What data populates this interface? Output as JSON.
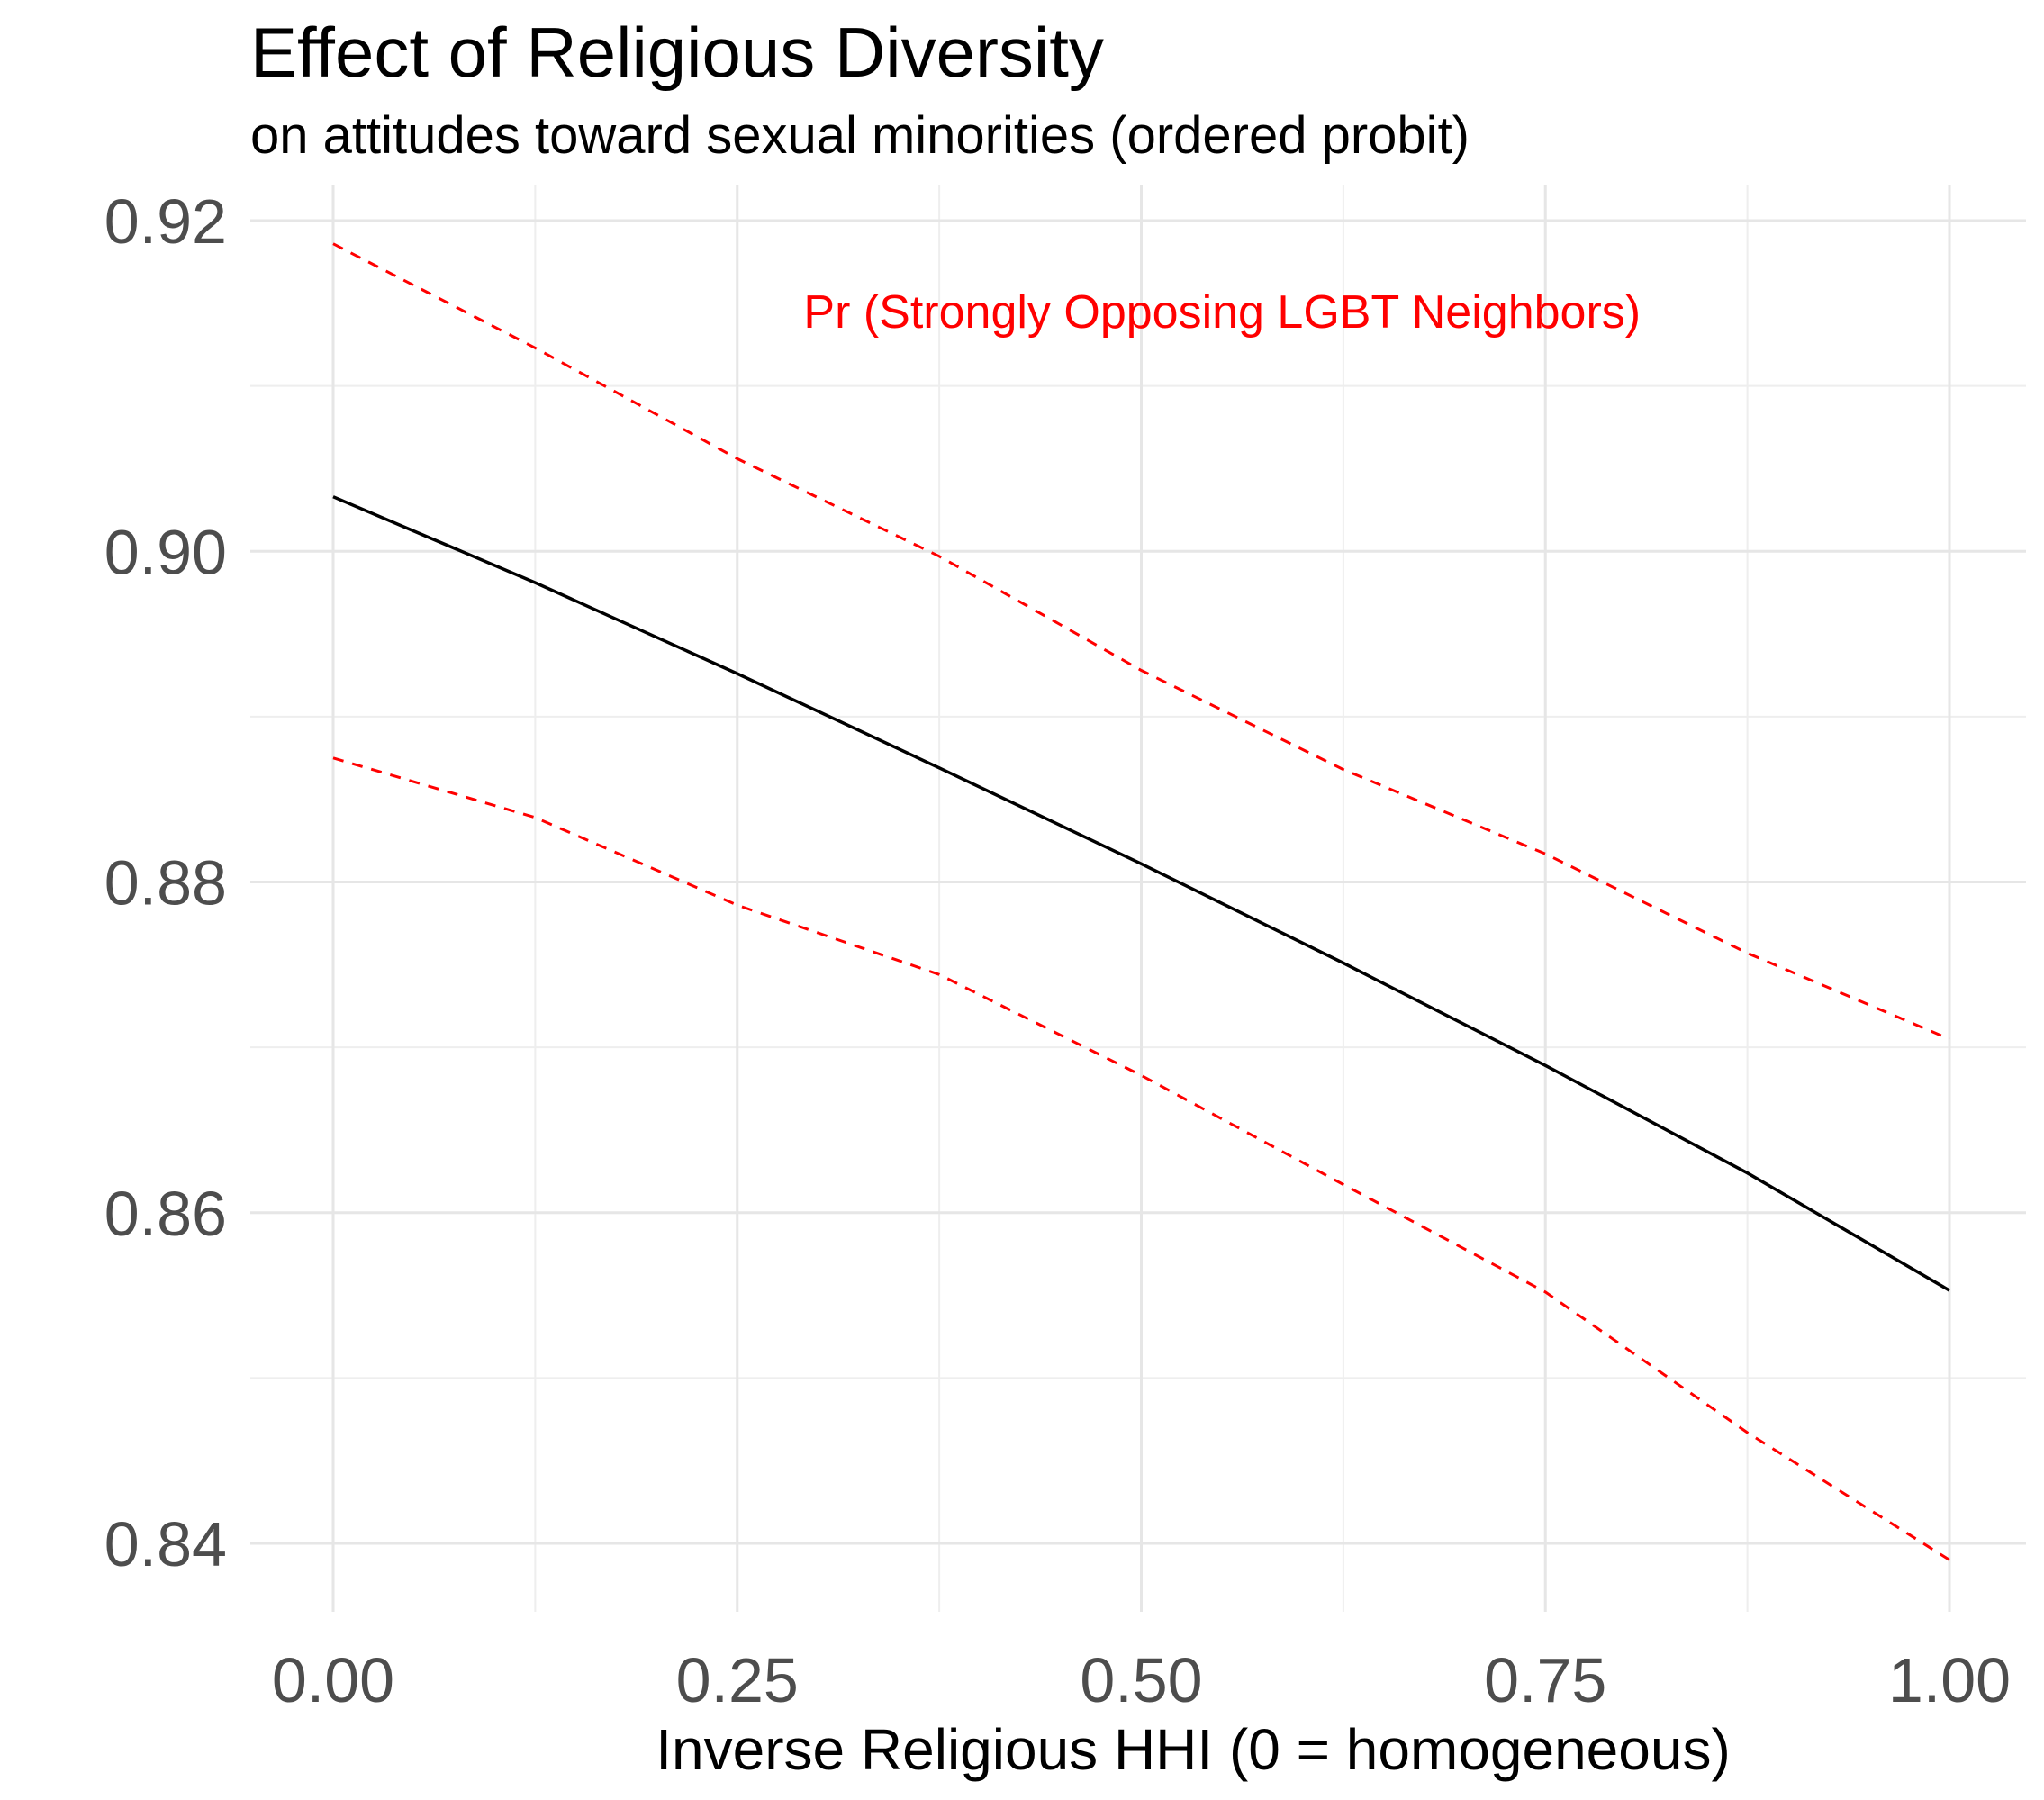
{
  "chart_data": {
    "type": "line",
    "title": "Effect of Religious Diversity",
    "subtitle": "on attitudes toward sexual minorities (ordered probit)",
    "xlabel": "Inverse Religious HHI (0 = homogeneous)",
    "ylabel": "",
    "xlim": [
      0,
      1
    ],
    "ylim": [
      0.835,
      0.9225
    ],
    "x_ticks": [
      0.0,
      0.25,
      0.5,
      0.75,
      1.0
    ],
    "x_tick_labels": [
      "0.00",
      "0.25",
      "0.50",
      "0.75",
      "1.00"
    ],
    "y_ticks": [
      0.84,
      0.86,
      0.88,
      0.9,
      0.92
    ],
    "y_tick_labels": [
      "0.84",
      "0.86",
      "0.88",
      "0.90",
      "0.92"
    ],
    "grid": true,
    "annotation": {
      "text": "Pr (Strongly Opposing LGBT Neighbors)",
      "color": "#ff0000",
      "x": 0.55,
      "y": 0.9145
    },
    "series": [
      {
        "role": "estimate",
        "color": "#000000",
        "dash": "solid",
        "x": [
          0.0,
          0.125,
          0.25,
          0.375,
          0.5,
          0.625,
          0.75,
          0.875,
          1.0
        ],
        "y": [
          0.9033,
          0.8981,
          0.8926,
          0.8869,
          0.8811,
          0.8751,
          0.8689,
          0.8624,
          0.8553
        ]
      },
      {
        "role": "upper",
        "color": "#ff0000",
        "dash": "dashed",
        "x": [
          0.0,
          0.125,
          0.25,
          0.375,
          0.5,
          0.625,
          0.75,
          0.875,
          1.0
        ],
        "y": [
          0.9186,
          0.9123,
          0.9056,
          0.8997,
          0.8928,
          0.8868,
          0.8817,
          0.8757,
          0.8705
        ]
      },
      {
        "role": "lower",
        "color": "#ff0000",
        "dash": "dashed",
        "x": [
          0.0,
          0.125,
          0.25,
          0.375,
          0.5,
          0.625,
          0.75,
          0.875,
          1.0
        ],
        "y": [
          0.8875,
          0.8839,
          0.8786,
          0.8744,
          0.8683,
          0.8617,
          0.8552,
          0.8467,
          0.839
        ]
      }
    ]
  }
}
